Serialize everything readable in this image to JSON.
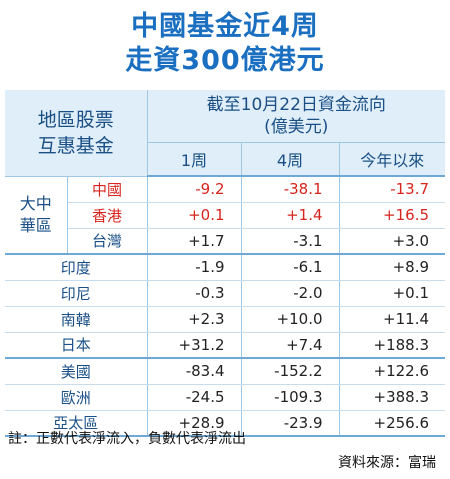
{
  "title": {
    "line1": "中國基金近4周",
    "line2": "走資300億港元"
  },
  "header": {
    "left_line1": "地區股票",
    "left_line2": "互惠基金",
    "right_line1": "截至10月22日資金流向",
    "right_line2": "(億美元)",
    "col_1w": "1周",
    "col_4w": "4周",
    "col_ytd": "今年以來"
  },
  "greater_china": {
    "label_line1": "大中",
    "label_line2": "華區",
    "rows": [
      {
        "market": "中國",
        "w1": "-9.2",
        "w4": "-38.1",
        "ytd": "-13.7"
      },
      {
        "market": "香港",
        "w1": "+0.1",
        "w4": "+1.4",
        "ytd": "+16.5"
      },
      {
        "market": "台灣",
        "w1": "+1.7",
        "w4": "-3.1",
        "ytd": "+3.0"
      }
    ]
  },
  "asia_rows": [
    {
      "market": "印度",
      "w1": "-1.9",
      "w4": "-6.1",
      "ytd": "+8.9"
    },
    {
      "market": "印尼",
      "w1": "-0.3",
      "w4": "-2.0",
      "ytd": "+0.1"
    },
    {
      "market": "南韓",
      "w1": "+2.3",
      "w4": "+10.0",
      "ytd": "+11.4"
    },
    {
      "market": "日本",
      "w1": "+31.2",
      "w4": "+7.4",
      "ytd": "+188.3"
    }
  ],
  "global_rows": [
    {
      "market": "美國",
      "w1": "-83.4",
      "w4": "-152.2",
      "ytd": "+122.6"
    },
    {
      "market": "歐洲",
      "w1": "-24.5",
      "w4": "-109.3",
      "ytd": "+388.3"
    },
    {
      "market": "亞太區",
      "w1": "+28.9",
      "w4": "-23.9",
      "ytd": "+256.6"
    }
  ],
  "note": "註：正數代表淨流入，負數代表淨流出",
  "source": "資料來源：富瑞",
  "colors": {
    "title_blue": "#1b6fc0",
    "header_bg": "#dfeef8",
    "text_blue": "#1a4f86",
    "red": "#d7251e"
  }
}
